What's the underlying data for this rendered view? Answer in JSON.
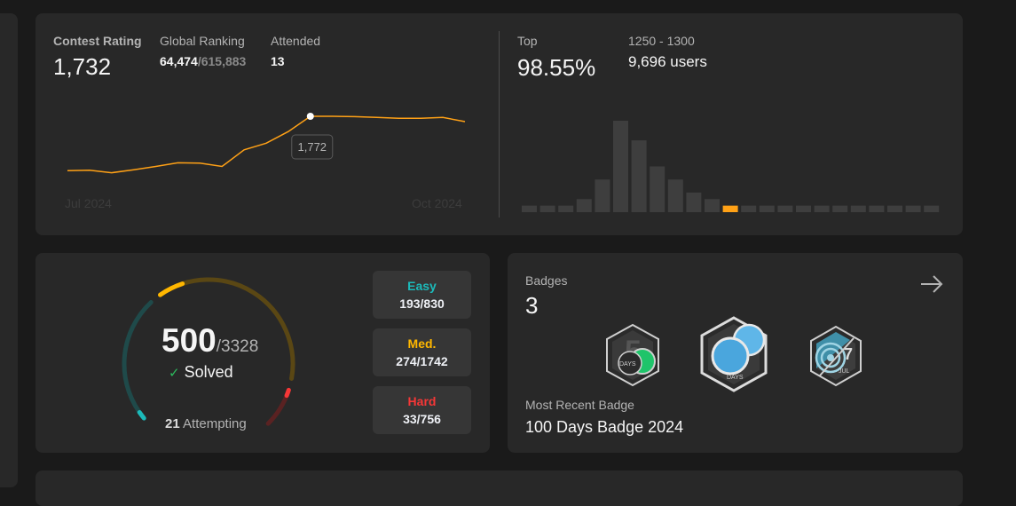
{
  "contest": {
    "rating_label": "Contest Rating",
    "rating_value": "1,732",
    "global_ranking_label": "Global Ranking",
    "global_rank": "64,474",
    "global_total": "/615,883",
    "attended_label": "Attended",
    "attended_value": "13",
    "tooltip_value": "1,772",
    "x_start_label": "Jul 2024",
    "x_end_label": "Oct 2024",
    "top_label": "Top",
    "top_percent": "98.55%",
    "range_label": "1250 - 1300",
    "range_users": "9,696 users",
    "accent_color": "#ffa116"
  },
  "chart_data": [
    {
      "type": "line",
      "xlabel": "",
      "ylabel": "",
      "x_tick_labels": [
        "Jul 2024",
        "Oct 2024"
      ],
      "series": [
        {
          "values": [
            1445,
            1447,
            1432,
            1450,
            1470,
            1492,
            1490,
            1470,
            1570,
            1610,
            1680,
            1772,
            1772,
            1770,
            1765,
            1760,
            1760,
            1765,
            1740
          ]
        }
      ],
      "highlight": {
        "index": 11,
        "label": "1,772"
      }
    },
    {
      "type": "bar",
      "xlabel": "",
      "ylabel": "",
      "values": [
        1,
        1,
        1,
        2,
        5,
        14,
        11,
        7,
        5,
        3,
        2,
        1,
        1,
        1,
        1,
        1,
        1,
        1,
        1,
        1,
        1,
        1,
        1
      ],
      "highlight_index": 11,
      "highlight_color": "#ffa116"
    }
  ],
  "solved": {
    "solved_count": "500",
    "total": "/3328",
    "solved_label": "Solved",
    "attempting_count": "21",
    "attempting_label": "Attempting",
    "easy": {
      "label": "Easy",
      "value": "193/830",
      "color": "#1cbaba"
    },
    "medium": {
      "label": "Med.",
      "value": "274/1742",
      "color": "#ffb700"
    },
    "hard": {
      "label": "Hard",
      "value": "33/756",
      "color": "#f63737"
    }
  },
  "badges": {
    "label": "Badges",
    "count": "3",
    "recent_label": "Most Recent Badge",
    "recent_name": "100 Days Badge 2024",
    "items": [
      {
        "icon": "50-days-badge-icon",
        "text": "DAYS"
      },
      {
        "icon": "100-days-badge-icon",
        "text": "DAYS"
      },
      {
        "icon": "july-badge-icon",
        "day": "7",
        "month": "JUL"
      }
    ]
  }
}
